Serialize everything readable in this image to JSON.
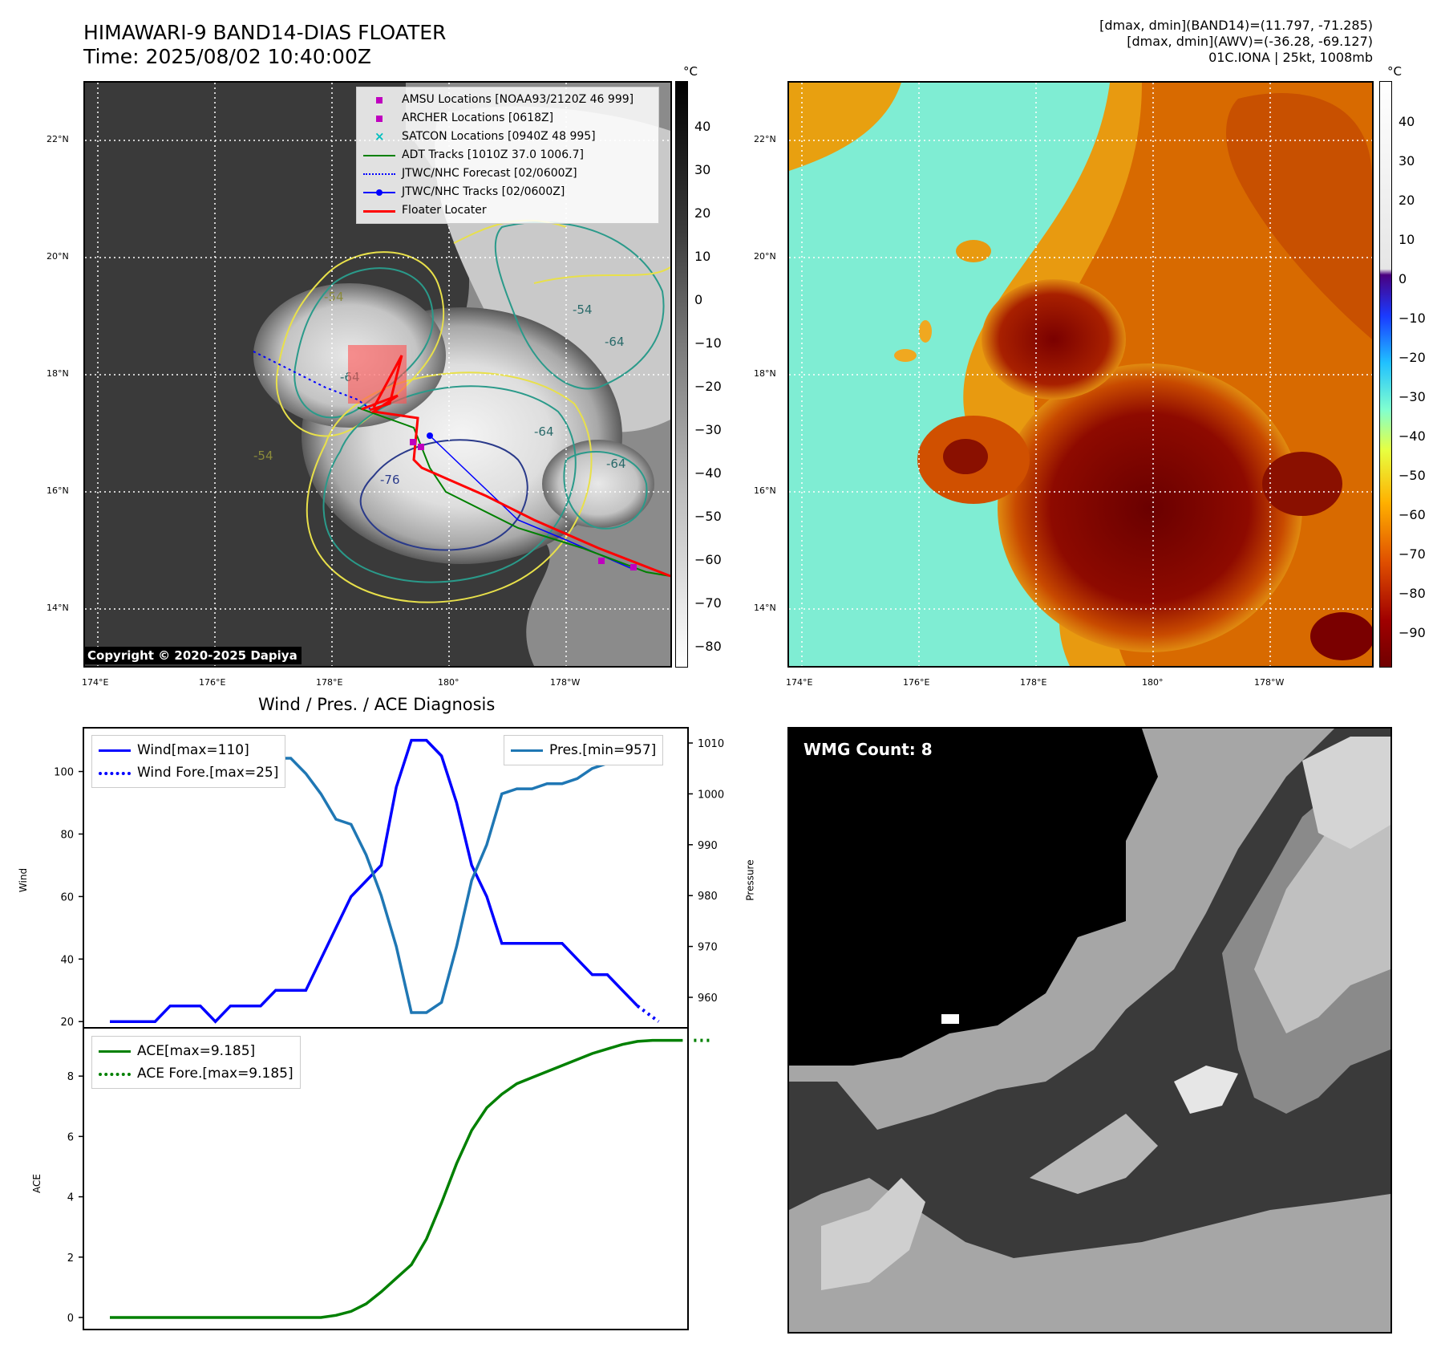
{
  "header": {
    "title_line1": "HIMAWARI-9 BAND14-DIAS FLOATER",
    "title_line2": "Time: 2025/08/02 10:40:00Z",
    "info_line1": "[dmax, dmin](BAND14)=(11.797, -71.285)",
    "info_line2": "[dmax, dmin](AWV)=(-36.28, -69.127)",
    "info_line3": "01C.IONA | 25kt, 1008mb"
  },
  "map": {
    "lat_labels": [
      "22°N",
      "20°N",
      "18°N",
      "16°N",
      "14°N"
    ],
    "lon_labels": [
      "174°E",
      "176°E",
      "178°E",
      "180°",
      "178°W"
    ],
    "copyright": "Copyright © 2020-2025 Dapiya",
    "contour_labels": [
      "-64",
      "-54",
      "-64",
      "-76",
      "-64",
      "-64",
      "-54",
      "-54"
    ],
    "legend": [
      {
        "label": "AMSU Locations [NOAA93/2120Z 46 999]",
        "color": "#bf00bf",
        "kind": "square"
      },
      {
        "label": "ARCHER Locations [0618Z]",
        "color": "#bf00bf",
        "kind": "square"
      },
      {
        "label": "SATCON Locations [0940Z 48 995]",
        "color": "#00bfbf",
        "kind": "x"
      },
      {
        "label": "ADT Tracks [1010Z 37.0 1006.7]",
        "color": "#008000",
        "kind": "line"
      },
      {
        "label": "JTWC/NHC Forecast [02/0600Z]",
        "color": "#0000ff",
        "kind": "dotted"
      },
      {
        "label": "JTWC/NHC Tracks [02/0600Z]",
        "color": "#0000ff",
        "kind": "line-dot"
      },
      {
        "label": "Floater Locater",
        "color": "#ff0000",
        "kind": "line"
      }
    ]
  },
  "colorbar_left": {
    "unit": "°C",
    "ticks": [
      "40",
      "30",
      "20",
      "10",
      "0",
      "−10",
      "−20",
      "−30",
      "−40",
      "−50",
      "−60",
      "−70",
      "−80"
    ]
  },
  "colorbar_right": {
    "unit": "°C",
    "ticks": [
      "40",
      "30",
      "20",
      "10",
      "0",
      "−10",
      "−20",
      "−30",
      "−40",
      "−50",
      "−60",
      "−70",
      "−80",
      "−90"
    ]
  },
  "diag": {
    "title": "Wind / Pres. / ACE Diagnosis",
    "wind_ylabel": "Wind",
    "pres_ylabel": "Pressure",
    "ace_ylabel": "ACE",
    "wind_legend1": "Wind[max=110]",
    "wind_legend2": "Wind Fore.[max=25]",
    "pres_legend": "Pres.[min=957]",
    "ace_legend1": "ACE[max=9.185]",
    "ace_legend2": "ACE Fore.[max=9.185]",
    "wind_yticks": [
      "100",
      "80",
      "60",
      "40",
      "20"
    ],
    "pres_yticks": [
      "1010",
      "1000",
      "990",
      "980",
      "970",
      "960"
    ],
    "ace_yticks": [
      "8",
      "6",
      "4",
      "2",
      "0"
    ]
  },
  "wmg": {
    "label": "WMG Count: 8"
  },
  "chart_data": [
    {
      "type": "line",
      "title": "Wind / Pres. / ACE Diagnosis",
      "ylabel": "Wind",
      "ylim": [
        18,
        114
      ],
      "series": [
        {
          "name": "Wind[max=110]",
          "color": "#0000ff",
          "values": [
            20,
            20,
            20,
            20,
            25,
            25,
            25,
            20,
            25,
            25,
            25,
            30,
            30,
            30,
            40,
            50,
            60,
            65,
            70,
            95,
            110,
            110,
            105,
            90,
            70,
            60,
            45,
            45,
            45,
            45,
            45,
            40,
            35,
            35,
            30,
            25
          ]
        },
        {
          "name": "Wind Fore.[max=25]",
          "color": "#0000ff",
          "style": "dotted",
          "values": [
            25,
            20
          ]
        }
      ]
    },
    {
      "type": "line",
      "ylabel": "Pressure",
      "ylim": [
        954,
        1013
      ],
      "series": [
        {
          "name": "Pres.[min=957]",
          "color": "#1f77b4",
          "values": [
            1010,
            1010,
            1010,
            1010,
            1009,
            1009,
            1008,
            1011,
            1010,
            1008,
            1008,
            1007,
            1007,
            1004,
            1000,
            995,
            994,
            988,
            980,
            970,
            957,
            957,
            959,
            970,
            983,
            990,
            1000,
            1001,
            1001,
            1002,
            1002,
            1003,
            1005,
            1006,
            1007,
            1008,
            1009
          ]
        }
      ]
    },
    {
      "type": "line",
      "ylabel": "ACE",
      "ylim": [
        -0.4,
        9.6
      ],
      "series": [
        {
          "name": "ACE[max=9.185]",
          "color": "#008000",
          "values": [
            0,
            0,
            0,
            0,
            0,
            0,
            0,
            0,
            0,
            0,
            0,
            0,
            0,
            0,
            0,
            0.07,
            0.2,
            0.45,
            0.85,
            1.3,
            1.75,
            2.6,
            3.8,
            5.1,
            6.2,
            6.95,
            7.4,
            7.75,
            7.95,
            8.15,
            8.35,
            8.55,
            8.75,
            8.9,
            9.05,
            9.15,
            9.185,
            9.185,
            9.185
          ]
        },
        {
          "name": "ACE Fore.[max=9.185]",
          "color": "#008000",
          "style": "dotted",
          "values": [
            9.185,
            9.185
          ]
        }
      ]
    }
  ]
}
